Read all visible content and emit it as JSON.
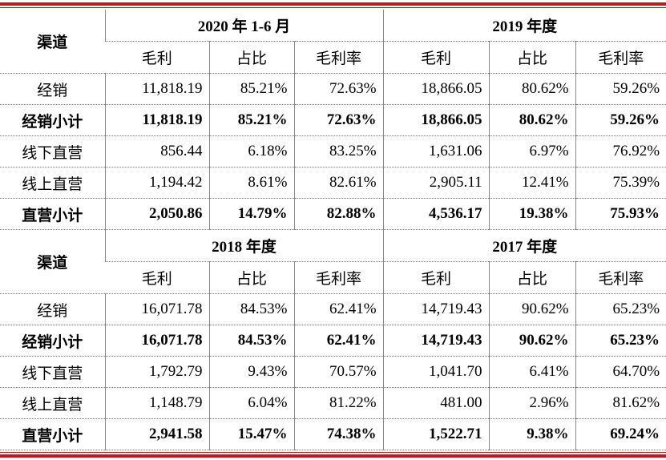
{
  "table": {
    "blocks": [
      {
        "channel_header": "渠道",
        "periods": [
          "2020 年 1-6 月",
          "2019 年度"
        ],
        "columns": [
          "毛利",
          "占比",
          "毛利率"
        ],
        "rows": [
          {
            "label": "经销",
            "bold": false,
            "cells": [
              "11,818.19",
              "85.21%",
              "72.63%",
              "18,866.05",
              "80.62%",
              "59.26%"
            ]
          },
          {
            "label": "经销小计",
            "bold": true,
            "cells": [
              "11,818.19",
              "85.21%",
              "72.63%",
              "18,866.05",
              "80.62%",
              "59.26%"
            ]
          },
          {
            "label": "线下直营",
            "bold": false,
            "cells": [
              "856.44",
              "6.18%",
              "83.25%",
              "1,631.06",
              "6.97%",
              "76.92%"
            ]
          },
          {
            "label": "线上直营",
            "bold": false,
            "cells": [
              "1,194.42",
              "8.61%",
              "82.61%",
              "2,905.11",
              "12.41%",
              "75.39%"
            ]
          },
          {
            "label": "直营小计",
            "bold": true,
            "cells": [
              "2,050.86",
              "14.79%",
              "82.88%",
              "4,536.17",
              "19.38%",
              "75.93%"
            ]
          }
        ]
      },
      {
        "channel_header": "渠道",
        "periods": [
          "2018 年度",
          "2017 年度"
        ],
        "columns": [
          "毛利",
          "占比",
          "毛利率"
        ],
        "rows": [
          {
            "label": "经销",
            "bold": false,
            "cells": [
              "16,071.78",
              "84.53%",
              "62.41%",
              "14,719.43",
              "90.62%",
              "65.23%"
            ]
          },
          {
            "label": "经销小计",
            "bold": true,
            "cells": [
              "16,071.78",
              "84.53%",
              "62.41%",
              "14,719.43",
              "90.62%",
              "65.23%"
            ]
          },
          {
            "label": "线下直营",
            "bold": false,
            "cells": [
              "1,792.79",
              "9.43%",
              "70.57%",
              "1,041.70",
              "6.41%",
              "64.70%"
            ]
          },
          {
            "label": "线上直营",
            "bold": false,
            "cells": [
              "1,148.79",
              "6.04%",
              "81.22%",
              "481.00",
              "2.96%",
              "81.62%"
            ]
          },
          {
            "label": "直营小计",
            "bold": true,
            "cells": [
              "2,941.58",
              "15.47%",
              "74.38%",
              "1,522.71",
              "9.38%",
              "69.24%"
            ]
          }
        ]
      }
    ]
  }
}
